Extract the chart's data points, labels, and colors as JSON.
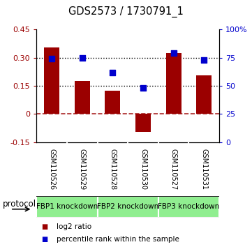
{
  "title": "GDS2573 / 1730791_1",
  "samples": [
    "GSM110526",
    "GSM110529",
    "GSM110528",
    "GSM110530",
    "GSM110527",
    "GSM110531"
  ],
  "log2_ratio": [
    0.355,
    0.175,
    0.125,
    -0.095,
    0.325,
    0.205
  ],
  "percentile_rank": [
    74,
    75,
    62,
    48,
    79,
    73
  ],
  "bar_color": "#9B0000",
  "square_color": "#0000CD",
  "ylim_left": [
    -0.15,
    0.45
  ],
  "ylim_right": [
    0,
    100
  ],
  "yticks_left": [
    -0.15,
    0,
    0.15,
    0.3,
    0.45
  ],
  "yticks_right": [
    0,
    25,
    50,
    75,
    100
  ],
  "yticklabels_left": [
    "-0.15",
    "0",
    "0.15",
    "0.30",
    "0.45"
  ],
  "yticklabels_right": [
    "0",
    "25",
    "50",
    "75",
    "100%"
  ],
  "hlines_dotted": [
    0.15,
    0.3
  ],
  "hline_dashed": 0,
  "protocol_groups": [
    {
      "label": "FBP1 knockdown",
      "indices": [
        0,
        1
      ]
    },
    {
      "label": "FBP2 knockdown",
      "indices": [
        2,
        3
      ]
    },
    {
      "label": "FBP3 knockdown",
      "indices": [
        4,
        5
      ]
    }
  ],
  "legend_items": [
    {
      "label": "log2 ratio",
      "color": "#9B0000"
    },
    {
      "label": "percentile rank within the sample",
      "color": "#0000CD"
    }
  ],
  "protocol_label": "protocol",
  "bar_width": 0.5,
  "square_size": 35,
  "background_color": "#FFFFFF",
  "plot_bg_color": "#FFFFFF",
  "label_area_color": "#C8C8C8",
  "proto_color": "#90EE90",
  "label_font_size": 7.0,
  "title_font_size": 10.5
}
